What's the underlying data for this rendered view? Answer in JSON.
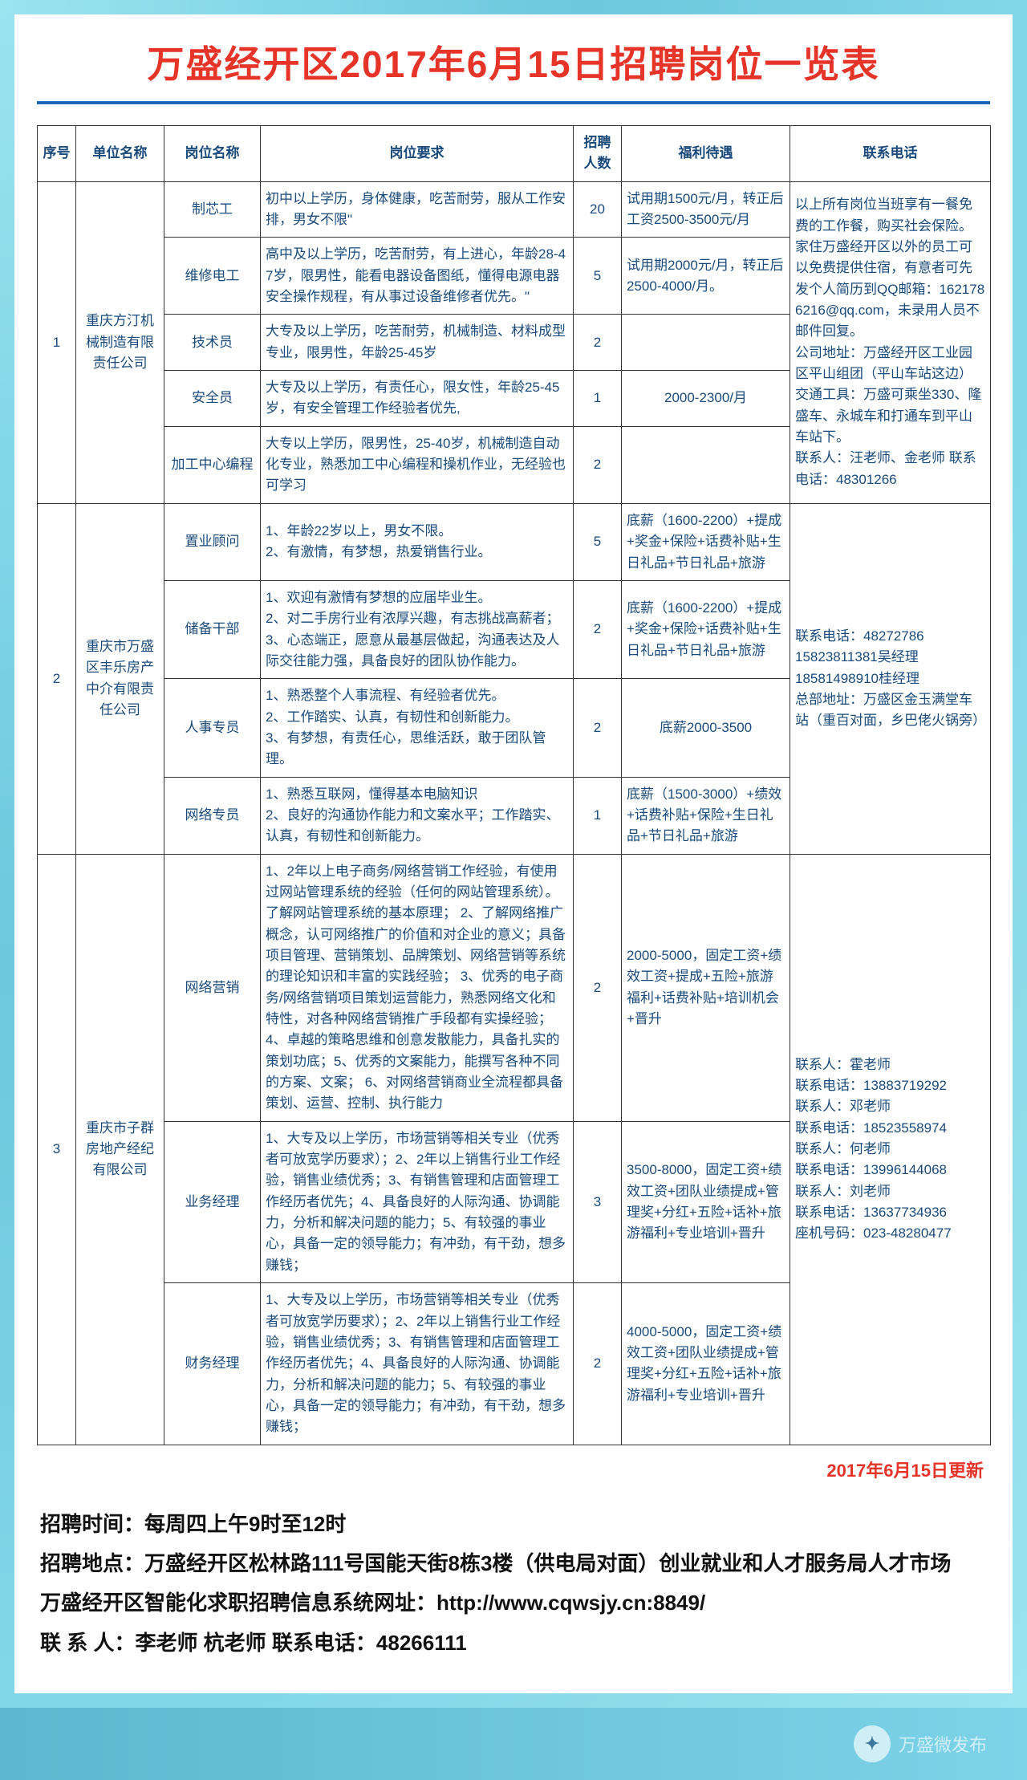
{
  "title": "万盛经开区2017年6月15日招聘岗位一览表",
  "headers": {
    "seq": "序号",
    "company": "单位名称",
    "job": "岗位名称",
    "req": "岗位要求",
    "num": "招聘人数",
    "benefit": "福利待遇",
    "tel": "联系电话"
  },
  "update_line": "2017年6月15日更新",
  "groups": [
    {
      "seq": "1",
      "company": "重庆方汀机械制造有限责任公司",
      "contact": "以上所有岗位当班享有一餐免费的工作餐，购买社会保险。家住万盛经开区以外的员工可以免费提供住宿，有意者可先发个人简历到QQ邮箱：1621786216@qq.com，未录用人员不邮件回复。\n公司地址：万盛经开区工业园区平山组团（平山车站这边）\n交通工具：万盛可乘坐330、隆盛车、永城车和打通车到平山车站下。\n联系人：汪老师、金老师      联系电话：48301266",
      "rows": [
        {
          "job": "制芯工",
          "req": "初中以上学历，身体健康，吃苦耐劳，服从工作安排，男女不限\"",
          "num": "20",
          "benefit": "试用期1500元/月，转正后工资2500-3500元/月"
        },
        {
          "job": "维修电工",
          "req": "高中及以上学历，吃苦耐劳，有上进心，年龄28-47岁，限男性，能看电器设备图纸，懂得电源电器安全操作规程，有从事过设备维修者优先。\"",
          "num": "5",
          "benefit": "试用期2000元/月，转正后2500-4000/月。"
        },
        {
          "job": "技术员",
          "req": "大专及以上学历，吃苦耐劳，机械制造、材料成型专业，限男性，年龄25-45岁",
          "num": "2",
          "benefit": ""
        },
        {
          "job": "安全员",
          "req": "大专及以上学历，有责任心，限女性，年龄25-45岁，有安全管理工作经验者优先,",
          "num": "1",
          "benefit": "2000-2300/月"
        },
        {
          "job": "加工中心编程",
          "req": "大专以上学历，限男性，25-40岁，机械制造自动化专业，熟悉加工中心编程和操机作业，无经验也可学习",
          "num": "2",
          "benefit": ""
        }
      ]
    },
    {
      "seq": "2",
      "company": "重庆市万盛区丰乐房产中介有限责任公司",
      "contact": "联系电话：48272786\n15823811381吴经理\n18581498910桂经理\n总部地址：万盛区金玉满堂车站（重百对面，乡巴佬火锅旁）",
      "rows": [
        {
          "job": "置业顾问",
          "req": "1、年龄22岁以上，男女不限。\n2、有激情，有梦想，热爱销售行业。",
          "num": "5",
          "benefit": "底薪（1600-2200）+提成+奖金+保险+话费补贴+生日礼品+节日礼品+旅游"
        },
        {
          "job": "储备干部",
          "req": "1、欢迎有激情有梦想的应届毕业生。\n2、对二手房行业有浓厚兴趣，有志挑战高薪者；\n3、心态端正，愿意从最基层做起，沟通表达及人际交往能力强，具备良好的团队协作能力。",
          "num": "2",
          "benefit": "底薪（1600-2200）+提成+奖金+保险+话费补贴+生日礼品+节日礼品+旅游"
        },
        {
          "job": "人事专员",
          "req": "1、熟悉整个人事流程、有经验者优先。\n2、工作踏实、认真，有韧性和创新能力。\n3、有梦想，有责任心，思维活跃，敢于团队管理。",
          "num": "2",
          "benefit": "底薪2000-3500"
        },
        {
          "job": "网络专员",
          "req": "1、熟悉互联网，懂得基本电脑知识\n2、良好的沟通协作能力和文案水平；工作踏实、认真，有韧性和创新能力。",
          "num": "1",
          "benefit": "底薪（1500-3000）+绩效+话费补贴+保险+生日礼品+节日礼品+旅游"
        }
      ]
    },
    {
      "seq": "3",
      "company": "重庆市子群房地产经纪有限公司",
      "contact": "联系人：霍老师\n联系电话：13883719292\n联系人：邓老师\n联系电话：18523558974\n联系人：何老师\n联系电话：13996144068\n联系人：刘老师\n联系电话：13637734936\n座机号码：023-48280477",
      "rows": [
        {
          "job": "网络营销",
          "req": "1、2年以上电子商务/网络营销工作经验，有使用过网站管理系统的经验（任何的网站管理系统）。了解网站管理系统的基本原理； 2、了解网络推广概念，认可网络推广的价值和对企业的意义；具备项目管理、营销策划、品牌策划、网络营销等系统的理论知识和丰富的实践经验； 3、优秀的电子商务/网络营销项目策划运营能力，熟悉网络文化和特性，对各种网络营销推广手段都有实操经验； 4、卓越的策略思维和创意发散能力，具备扎实的策划功底；5、优秀的文案能力，能撰写各种不同的方案、文案； 6、对网络营销商业全流程都具备策划、运营、控制、执行能力",
          "num": "2",
          "benefit": "2000-5000，固定工资+绩效工资+提成+五险+旅游福利+话费补贴+培训机会+晋升"
        },
        {
          "job": "业务经理",
          "req": "1、大专及以上学历，市场营销等相关专业（优秀者可放宽学历要求）；2、2年以上销售行业工作经验，销售业绩优秀；3、有销售管理和店面管理工作经历者优先；4、具备良好的人际沟通、协调能力，分析和解决问题的能力；5、有较强的事业心，具备一定的领导能力；有冲劲，有干劲，想多赚钱；",
          "num": "3",
          "benefit": "3500-8000，固定工资+绩效工资+团队业绩提成+管理奖+分红+五险+话补+旅游福利+专业培训+晋升"
        },
        {
          "job": "财务经理",
          "req": "1、大专及以上学历，市场营销等相关专业（优秀者可放宽学历要求）；2、2年以上销售行业工作经验，销售业绩优秀；3、有销售管理和店面管理工作经历者优先；4、具备良好的人际沟通、协调能力，分析和解决问题的能力；5、有较强的事业心，具备一定的领导能力；有冲劲，有干劲，想多赚钱；",
          "num": "2",
          "benefit": "4000-5000，固定工资+绩效工资+团队业绩提成+管理奖+分红+五险+话补+旅游福利+专业培训+晋升"
        }
      ]
    }
  ],
  "footer": [
    "招聘时间：每周四上午9时至12时",
    "招聘地点：万盛经开区松林路111号国能天街8栋3楼（供电局对面）创业就业和人才服务局人才市场",
    "万盛经开区智能化求职招聘信息系统网址：http://www.cqwsjy.cn:8849/",
    "联 系 人：李老师   杭老师       联系电话：48266111"
  ],
  "watermark": "万盛微发布"
}
